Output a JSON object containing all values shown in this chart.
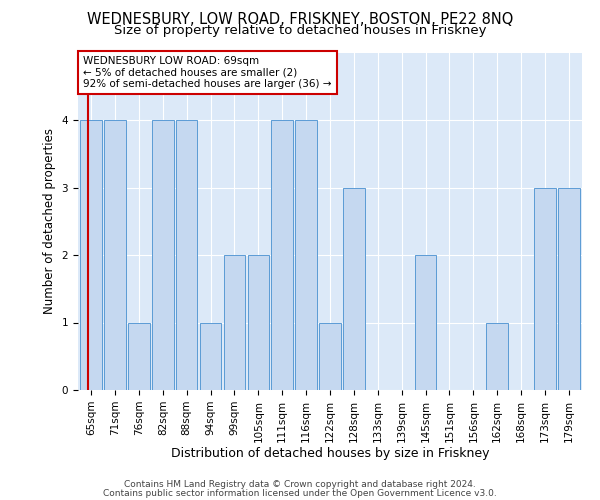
{
  "title": "WEDNESBURY, LOW ROAD, FRISKNEY, BOSTON, PE22 8NQ",
  "subtitle": "Size of property relative to detached houses in Friskney",
  "xlabel": "Distribution of detached houses by size in Friskney",
  "ylabel": "Number of detached properties",
  "categories": [
    "65sqm",
    "71sqm",
    "76sqm",
    "82sqm",
    "88sqm",
    "94sqm",
    "99sqm",
    "105sqm",
    "111sqm",
    "116sqm",
    "122sqm",
    "128sqm",
    "133sqm",
    "139sqm",
    "145sqm",
    "151sqm",
    "156sqm",
    "162sqm",
    "168sqm",
    "173sqm",
    "179sqm"
  ],
  "values": [
    4,
    4,
    1,
    4,
    4,
    1,
    2,
    2,
    4,
    4,
    1,
    3,
    0,
    0,
    2,
    0,
    0,
    1,
    0,
    3,
    3
  ],
  "bar_color": "#c5d8f0",
  "bar_edge_color": "#5b9bd5",
  "background_color": "#dce9f8",
  "grid_color": "#ffffff",
  "red_line_color": "#cc0000",
  "annotation_text": "WEDNESBURY LOW ROAD: 69sqm\n← 5% of detached houses are smaller (2)\n92% of semi-detached houses are larger (36) →",
  "annotation_box_color": "#ffffff",
  "annotation_box_edge_color": "#cc0000",
  "footer_line1": "Contains HM Land Registry data © Crown copyright and database right 2024.",
  "footer_line2": "Contains public sector information licensed under the Open Government Licence v3.0.",
  "ylim": [
    0,
    5
  ],
  "yticks": [
    0,
    1,
    2,
    3,
    4
  ],
  "title_fontsize": 10.5,
  "subtitle_fontsize": 9.5,
  "xlabel_fontsize": 9,
  "ylabel_fontsize": 8.5,
  "tick_fontsize": 7.5,
  "annotation_fontsize": 7.5,
  "footer_fontsize": 6.5
}
